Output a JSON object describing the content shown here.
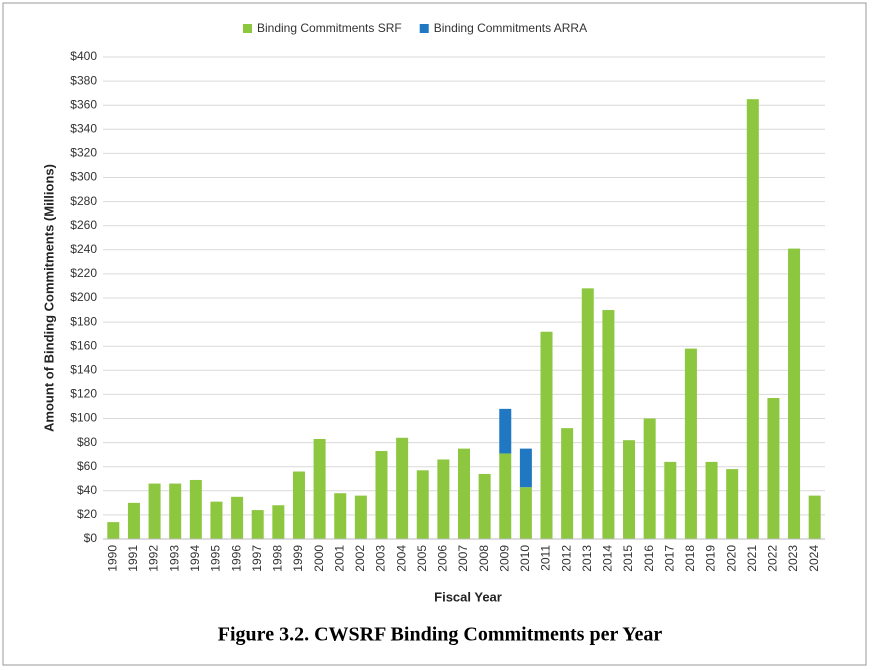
{
  "chart_data": {
    "type": "bar",
    "stacked": true,
    "caption": "Figure 3.2. CWSRF Binding Commitments per Year",
    "xlabel": "Fiscal Year",
    "ylabel": "Amount of Binding Commitments (Millions)",
    "categories": [
      "1990",
      "1991",
      "1992",
      "1993",
      "1994",
      "1995",
      "1996",
      "1997",
      "1998",
      "1999",
      "2000",
      "2001",
      "2002",
      "2003",
      "2004",
      "2005",
      "2006",
      "2007",
      "2008",
      "2009",
      "2010",
      "2011",
      "2012",
      "2013",
      "2014",
      "2015",
      "2016",
      "2017",
      "2018",
      "2019",
      "2020",
      "2021",
      "2022",
      "2023",
      "2024"
    ],
    "series": [
      {
        "name": "Binding Commitments SRF",
        "color": "#8dc63f",
        "values": [
          14,
          30,
          46,
          46,
          49,
          31,
          35,
          24,
          28,
          56,
          83,
          38,
          36,
          73,
          84,
          57,
          66,
          75,
          54,
          71,
          43,
          172,
          92,
          208,
          190,
          82,
          100,
          64,
          158,
          64,
          58,
          365,
          117,
          241,
          36
        ]
      },
      {
        "name": "Binding Commitments ARRA",
        "color": "#1f78c1",
        "values": [
          null,
          null,
          null,
          null,
          null,
          null,
          null,
          null,
          null,
          null,
          null,
          null,
          null,
          null,
          null,
          null,
          null,
          null,
          null,
          37,
          32,
          null,
          null,
          null,
          null,
          null,
          null,
          null,
          null,
          null,
          null,
          null,
          null,
          null,
          null
        ]
      }
    ],
    "ylim": [
      0,
      400
    ],
    "yticks": [
      {
        "value": 0,
        "label": "$0"
      },
      {
        "value": 20,
        "label": "$20"
      },
      {
        "value": 40,
        "label": "$40"
      },
      {
        "value": 60,
        "label": "$60"
      },
      {
        "value": 80,
        "label": "$80"
      },
      {
        "value": 100,
        "label": "$100"
      },
      {
        "value": 120,
        "label": "$120"
      },
      {
        "value": 140,
        "label": "$140"
      },
      {
        "value": 160,
        "label": "$160"
      },
      {
        "value": 180,
        "label": "$180"
      },
      {
        "value": 200,
        "label": "$200"
      },
      {
        "value": 220,
        "label": "$220"
      },
      {
        "value": 240,
        "label": "$240"
      },
      {
        "value": 260,
        "label": "$260"
      },
      {
        "value": 280,
        "label": "$280"
      },
      {
        "value": 300,
        "label": "$300"
      },
      {
        "value": 320,
        "label": "$320"
      },
      {
        "value": 340,
        "label": "$340"
      },
      {
        "value": 360,
        "label": "$360"
      },
      {
        "value": 380,
        "label": "$380"
      },
      {
        "value": 400,
        "label": "$400"
      }
    ],
    "grid": true,
    "legend": "top"
  }
}
